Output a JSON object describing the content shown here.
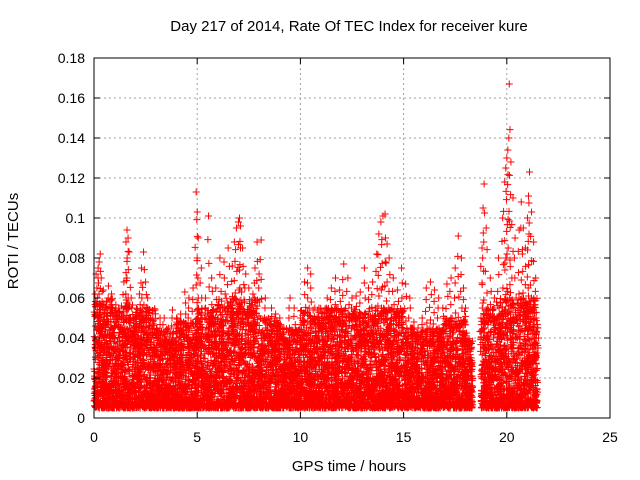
{
  "chart_data": {
    "type": "scatter",
    "title": "Day 217 of 2014, Rate Of TEC Index for receiver kure",
    "xlabel": "GPS time / hours",
    "ylabel": "ROTI / TECUs",
    "xlim": [
      0,
      25
    ],
    "ylim": [
      0,
      0.18
    ],
    "x_ticks": [
      "0",
      "5",
      "10",
      "15",
      "20",
      "25"
    ],
    "y_ticks": [
      "0",
      "0.02",
      "0.04",
      "0.06",
      "0.08",
      "0.1",
      "0.12",
      "0.14",
      "0.16",
      "0.18"
    ],
    "grid": true,
    "marker": "+",
    "color": "#ff0000",
    "series": [
      {
        "points": [
          [
            0.05,
            0.062
          ],
          [
            0.1,
            0.072
          ],
          [
            0.2,
            0.075
          ],
          [
            0.25,
            0.078
          ],
          [
            0.3,
            0.082
          ],
          [
            0.35,
            0.07
          ],
          [
            0.45,
            0.064
          ],
          [
            0.7,
            0.066
          ],
          [
            0.85,
            0.062
          ],
          [
            1.0,
            0.045
          ],
          [
            1.2,
            0.055
          ],
          [
            1.45,
            0.068
          ],
          [
            1.55,
            0.088
          ],
          [
            1.6,
            0.094
          ],
          [
            1.65,
            0.09
          ],
          [
            1.7,
            0.083
          ],
          [
            1.8,
            0.06
          ],
          [
            2.0,
            0.05
          ],
          [
            2.2,
            0.062
          ],
          [
            2.3,
            0.075
          ],
          [
            2.4,
            0.083
          ],
          [
            2.5,
            0.068
          ],
          [
            2.6,
            0.06
          ],
          [
            2.8,
            0.045
          ],
          [
            3.0,
            0.035
          ],
          [
            3.2,
            0.05
          ],
          [
            3.4,
            0.05
          ],
          [
            3.6,
            0.045
          ],
          [
            3.8,
            0.054
          ],
          [
            4.0,
            0.05
          ],
          [
            4.2,
            0.052
          ],
          [
            4.4,
            0.063
          ],
          [
            4.6,
            0.06
          ],
          [
            4.8,
            0.065
          ],
          [
            4.95,
            0.113
          ],
          [
            5.0,
            0.103
          ],
          [
            5.05,
            0.09
          ],
          [
            5.2,
            0.075
          ],
          [
            5.4,
            0.06
          ],
          [
            5.55,
            0.101
          ],
          [
            5.7,
            0.07
          ],
          [
            5.9,
            0.065
          ],
          [
            6.1,
            0.08
          ],
          [
            6.3,
            0.078
          ],
          [
            6.5,
            0.085
          ],
          [
            6.7,
            0.076
          ],
          [
            6.8,
            0.088
          ],
          [
            6.9,
            0.095
          ],
          [
            7.0,
            0.098
          ],
          [
            7.05,
            0.1
          ],
          [
            7.1,
            0.096
          ],
          [
            7.2,
            0.085
          ],
          [
            7.35,
            0.072
          ],
          [
            7.5,
            0.065
          ],
          [
            7.7,
            0.062
          ],
          [
            7.8,
            0.075
          ],
          [
            7.9,
            0.088
          ],
          [
            8.0,
            0.072
          ],
          [
            8.1,
            0.089
          ],
          [
            8.3,
            0.06
          ],
          [
            8.6,
            0.055
          ],
          [
            8.8,
            0.052
          ],
          [
            9.0,
            0.05
          ],
          [
            9.2,
            0.045
          ],
          [
            9.5,
            0.06
          ],
          [
            9.7,
            0.055
          ],
          [
            10.0,
            0.05
          ],
          [
            10.2,
            0.068
          ],
          [
            10.35,
            0.075
          ],
          [
            10.5,
            0.072
          ],
          [
            10.7,
            0.055
          ],
          [
            10.9,
            0.055
          ],
          [
            11.1,
            0.05
          ],
          [
            11.3,
            0.06
          ],
          [
            11.5,
            0.065
          ],
          [
            11.7,
            0.07
          ],
          [
            11.9,
            0.064
          ],
          [
            12.1,
            0.077
          ],
          [
            12.3,
            0.07
          ],
          [
            12.5,
            0.06
          ],
          [
            12.7,
            0.061
          ],
          [
            12.9,
            0.063
          ],
          [
            13.1,
            0.075
          ],
          [
            13.3,
            0.065
          ],
          [
            13.5,
            0.068
          ],
          [
            13.7,
            0.082
          ],
          [
            13.8,
            0.092
          ],
          [
            13.9,
            0.098
          ],
          [
            14.0,
            0.101
          ],
          [
            14.1,
            0.102
          ],
          [
            14.2,
            0.087
          ],
          [
            14.3,
            0.08
          ],
          [
            14.5,
            0.07
          ],
          [
            14.7,
            0.064
          ],
          [
            14.9,
            0.075
          ],
          [
            15.1,
            0.067
          ],
          [
            15.3,
            0.06
          ],
          [
            15.5,
            0.048
          ],
          [
            15.7,
            0.045
          ],
          [
            15.9,
            0.05
          ],
          [
            16.1,
            0.065
          ],
          [
            16.3,
            0.068
          ],
          [
            16.5,
            0.064
          ],
          [
            16.7,
            0.06
          ],
          [
            16.9,
            0.055
          ],
          [
            17.1,
            0.067
          ],
          [
            17.3,
            0.07
          ],
          [
            17.5,
            0.075
          ],
          [
            17.65,
            0.091
          ],
          [
            17.8,
            0.08
          ],
          [
            17.9,
            0.065
          ],
          [
            18.0,
            0.055
          ],
          [
            18.2,
            0.025
          ],
          [
            18.75,
            0.05
          ],
          [
            18.8,
            0.085
          ],
          [
            18.85,
            0.105
          ],
          [
            18.9,
            0.117
          ],
          [
            19.0,
            0.095
          ],
          [
            19.2,
            0.07
          ],
          [
            19.4,
            0.06
          ],
          [
            19.6,
            0.08
          ],
          [
            19.8,
            0.1
          ],
          [
            19.9,
            0.118
          ],
          [
            19.95,
            0.125
          ],
          [
            20.0,
            0.13
          ],
          [
            20.05,
            0.134
          ],
          [
            20.1,
            0.14
          ],
          [
            20.12,
            0.167
          ],
          [
            20.2,
            0.128
          ],
          [
            20.3,
            0.11
          ],
          [
            20.4,
            0.09
          ],
          [
            20.6,
            0.094
          ],
          [
            20.7,
            0.108
          ],
          [
            20.8,
            0.095
          ],
          [
            20.9,
            0.085
          ],
          [
            21.0,
            0.1
          ],
          [
            21.05,
            0.111
          ],
          [
            21.1,
            0.123
          ],
          [
            21.2,
            0.103
          ],
          [
            21.3,
            0.088
          ],
          [
            21.4,
            0.07
          ],
          [
            21.5,
            0.045
          ]
        ]
      }
    ],
    "density": {
      "note": "dense band of points; hourly upper envelope",
      "hour_bins": [
        {
          "start": 0,
          "end": 1,
          "upper": 0.06,
          "lower": 0.005
        },
        {
          "start": 1,
          "end": 2,
          "upper": 0.058,
          "lower": 0.005
        },
        {
          "start": 2,
          "end": 3,
          "upper": 0.055,
          "lower": 0.005
        },
        {
          "start": 3,
          "end": 4,
          "upper": 0.045,
          "lower": 0.005
        },
        {
          "start": 4,
          "end": 5,
          "upper": 0.05,
          "lower": 0.005
        },
        {
          "start": 5,
          "end": 6,
          "upper": 0.055,
          "lower": 0.005
        },
        {
          "start": 6,
          "end": 7,
          "upper": 0.06,
          "lower": 0.005
        },
        {
          "start": 7,
          "end": 8,
          "upper": 0.06,
          "lower": 0.005
        },
        {
          "start": 8,
          "end": 9,
          "upper": 0.05,
          "lower": 0.005
        },
        {
          "start": 9,
          "end": 10,
          "upper": 0.045,
          "lower": 0.005
        },
        {
          "start": 10,
          "end": 11,
          "upper": 0.055,
          "lower": 0.005
        },
        {
          "start": 11,
          "end": 12,
          "upper": 0.055,
          "lower": 0.005
        },
        {
          "start": 12,
          "end": 13,
          "upper": 0.055,
          "lower": 0.005
        },
        {
          "start": 13,
          "end": 14,
          "upper": 0.055,
          "lower": 0.005
        },
        {
          "start": 14,
          "end": 15,
          "upper": 0.055,
          "lower": 0.005
        },
        {
          "start": 15,
          "end": 16,
          "upper": 0.045,
          "lower": 0.005
        },
        {
          "start": 16,
          "end": 17,
          "upper": 0.045,
          "lower": 0.005
        },
        {
          "start": 17,
          "end": 18,
          "upper": 0.05,
          "lower": 0.005
        },
        {
          "start": 18,
          "end": 18.35,
          "upper": 0.04,
          "lower": 0.005
        },
        {
          "start": 18.75,
          "end": 19.5,
          "upper": 0.055,
          "lower": 0.005
        },
        {
          "start": 19.5,
          "end": 20.5,
          "upper": 0.06,
          "lower": 0.005
        },
        {
          "start": 20.5,
          "end": 21.5,
          "upper": 0.06,
          "lower": 0.005
        }
      ]
    }
  }
}
